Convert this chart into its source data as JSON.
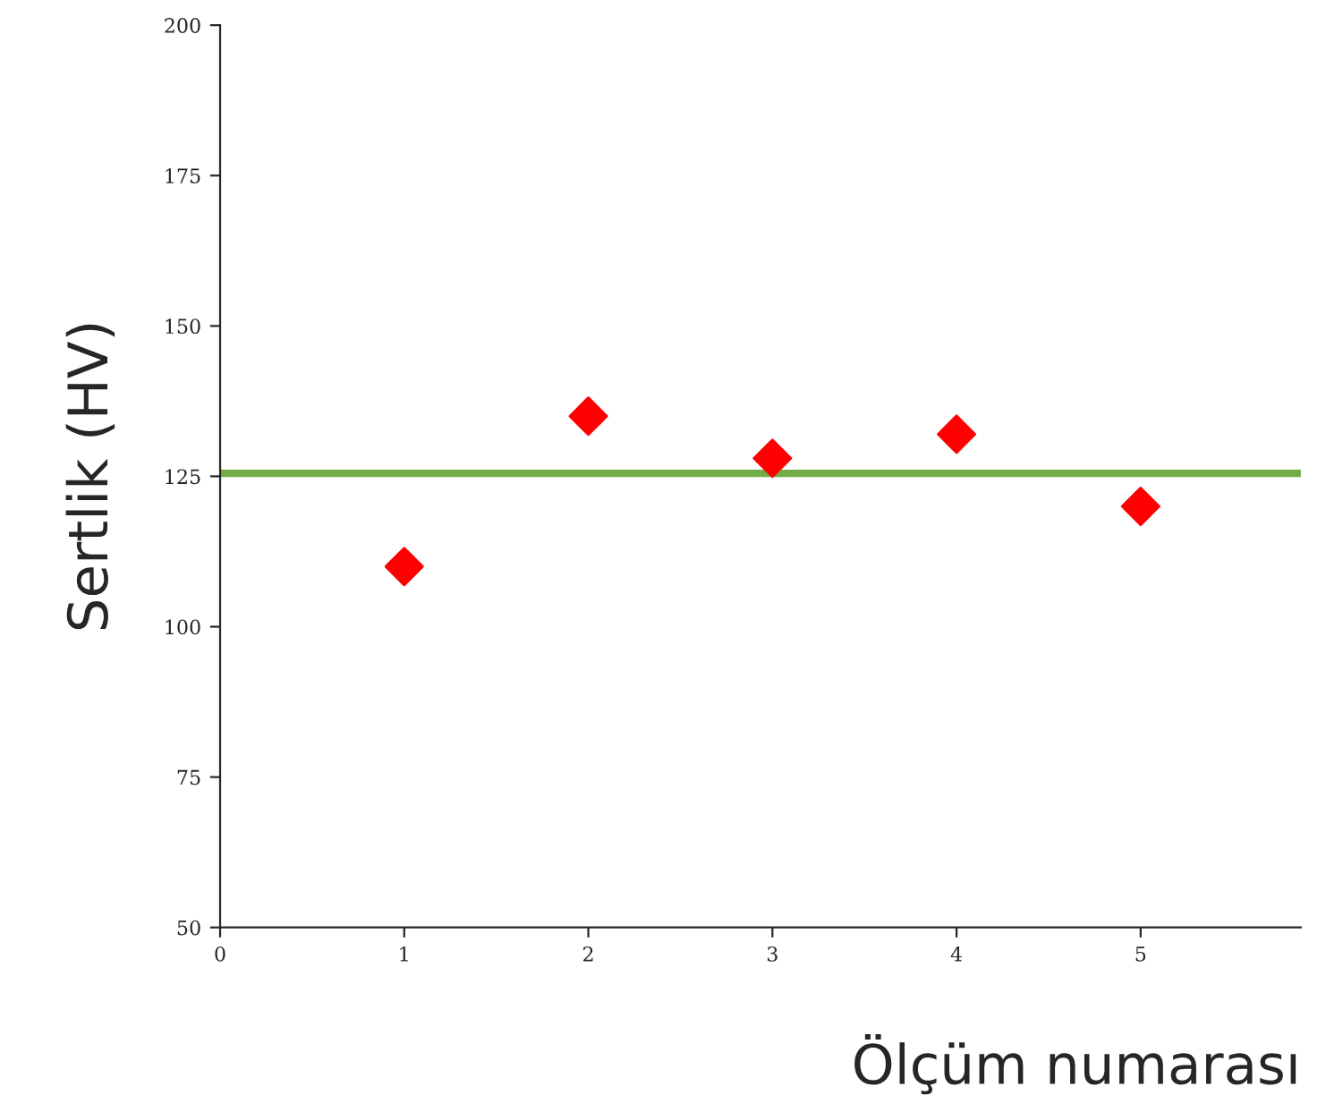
{
  "chart_data": {
    "type": "scatter",
    "xlabel": "Ölçüm numarası",
    "ylabel": "Sertlik (HV)",
    "x": [
      1,
      2,
      3,
      4,
      5
    ],
    "series": [
      {
        "color": "#ff0000",
        "values": [
          110,
          135,
          128,
          132,
          120
        ]
      }
    ],
    "marker": "diamond",
    "xlim": [
      0,
      5.87
    ],
    "xticks": [
      0,
      1,
      2,
      3,
      4,
      5
    ],
    "ylim": [
      50,
      200
    ],
    "yticks": [
      50,
      75,
      100,
      125,
      150,
      175,
      200
    ],
    "ref_lines": [
      {
        "axis": "y",
        "value": 125.5,
        "color": "#70ad47",
        "line_style": "solid"
      }
    ],
    "grid": false,
    "legend": false
  }
}
